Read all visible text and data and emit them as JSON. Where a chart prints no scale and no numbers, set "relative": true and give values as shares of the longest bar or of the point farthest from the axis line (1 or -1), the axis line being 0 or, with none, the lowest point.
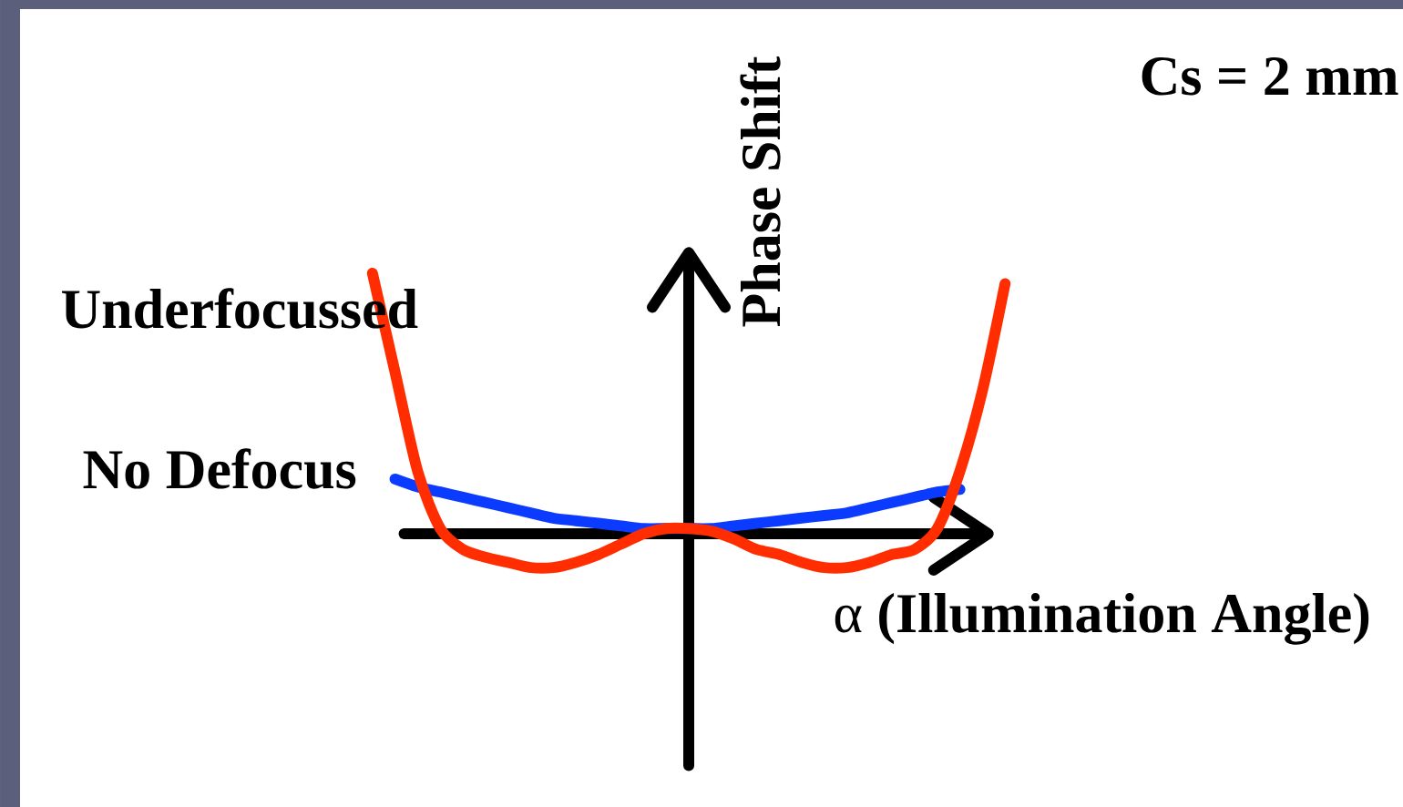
{
  "chart_data": {
    "type": "line",
    "relative": true,
    "xlabel": "α **(Illumination Angle)**",
    "ylabel": "Phase Shift",
    "annotations": [
      "Cs = 2 mm"
    ],
    "categories": [
      null,
      null,
      null,
      null,
      null,
      null,
      null,
      null,
      null,
      null,
      null,
      null,
      null,
      null,
      null,
      null,
      null,
      null,
      null,
      null,
      null,
      null,
      null,
      null,
      null,
      null,
      null,
      null,
      null
    ],
    "series": [
      {
        "name": "No Defocus",
        "color": "#0b3bff",
        "values": [
          null,
          0.21,
          0.18,
          0.16,
          0.14,
          0.12,
          0.1,
          0.08,
          0.06,
          0.05,
          0.04,
          0.03,
          0.02,
          0.02,
          0.02,
          0.02,
          0.03,
          0.04,
          0.05,
          0.06,
          0.07,
          0.08,
          0.1,
          0.12,
          0.14,
          0.16,
          0.17,
          null,
          null
        ]
      },
      {
        "name": "Underfocussed",
        "color": "#ff2d00",
        "values": [
          1.0,
          0.62,
          0.24,
          0.02,
          -0.06,
          -0.09,
          -0.11,
          -0.13,
          -0.13,
          -0.11,
          -0.08,
          -0.04,
          0.0,
          0.02,
          0.02,
          0.01,
          -0.02,
          -0.06,
          -0.08,
          -0.11,
          -0.13,
          -0.13,
          -0.11,
          -0.08,
          -0.06,
          0.02,
          0.24,
          0.55,
          0.96
        ]
      }
    ]
  }
}
